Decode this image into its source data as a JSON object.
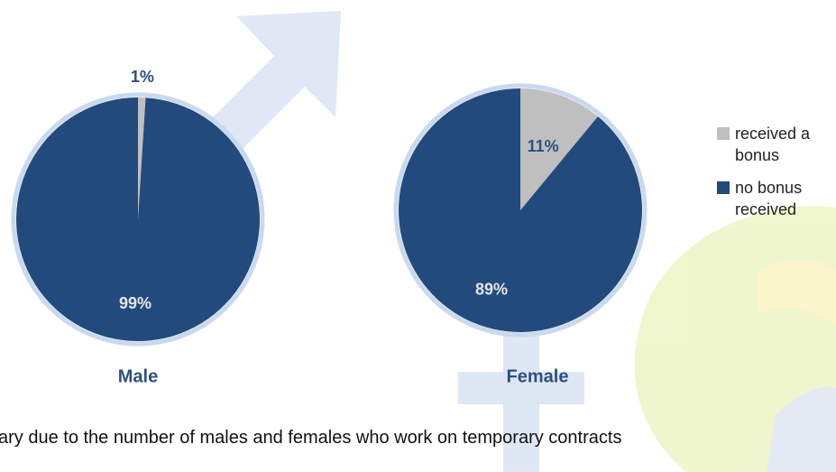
{
  "chart_data": {
    "type": "pie",
    "categories": [
      "received a bonus",
      "no bonus received"
    ],
    "colors": [
      "#bfbfbf",
      "#234a7c"
    ],
    "series": [
      {
        "name": "Male",
        "values": [
          1,
          99
        ],
        "value_labels": [
          "1%",
          "99%"
        ]
      },
      {
        "name": "Female",
        "values": [
          11,
          89
        ],
        "value_labels": [
          "11%",
          "89%"
        ]
      }
    ]
  },
  "note": "ary due to the number of males and females who work on temporary contracts"
}
